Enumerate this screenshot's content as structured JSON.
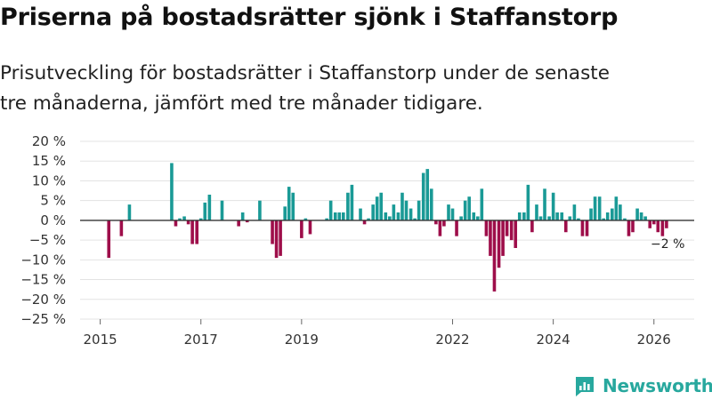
{
  "title": "Priserna på bostadsrätter sjönk i Staffanstorp",
  "subtitle": "Prisutveckling för bostadsrätter i Staffanstorp under de senaste tre månaderna, jämfört med tre månader tidigare.",
  "brand": "Newsworthy",
  "colors": {
    "positive": "#1a9a96",
    "negative": "#9e0e4a",
    "grid": "#e3e3e3",
    "zero": "#333333",
    "brand": "#28a89e"
  },
  "chart_data": {
    "type": "bar",
    "title": "Priserna på bostadsrätter sjönk i Staffanstorp",
    "xlabel": "",
    "ylabel": "",
    "ylim": [
      -25,
      20
    ],
    "yticks": [
      {
        "v": 20,
        "label": "20 %"
      },
      {
        "v": 15,
        "label": "15 %"
      },
      {
        "v": 10,
        "label": "10 %"
      },
      {
        "v": 5,
        "label": "5 %"
      },
      {
        "v": 0,
        "label": "0 %"
      },
      {
        "v": -5,
        "label": "−5 %"
      },
      {
        "v": -10,
        "label": "−10 %"
      },
      {
        "v": -15,
        "label": "−15 %"
      },
      {
        "v": -20,
        "label": "−20 %"
      },
      {
        "v": -25,
        "label": "−25 %"
      }
    ],
    "xlim": [
      2014.6,
      2026.8
    ],
    "xticks": [
      {
        "v": 2015,
        "label": "2015"
      },
      {
        "v": 2017,
        "label": "2017"
      },
      {
        "v": 2019,
        "label": "2019"
      },
      {
        "v": 2022,
        "label": "2022"
      },
      {
        "v": 2024,
        "label": "2024"
      },
      {
        "v": 2026,
        "label": "2026"
      }
    ],
    "annotation": {
      "text": "−2 %",
      "x": 2025.92,
      "y": -2
    },
    "series": [
      {
        "name": "Prisutveckling",
        "points": [
          {
            "x": 2015.17,
            "y": -9.5
          },
          {
            "x": 2015.42,
            "y": -4
          },
          {
            "x": 2015.58,
            "y": 4
          },
          {
            "x": 2016.42,
            "y": 14.5
          },
          {
            "x": 2016.5,
            "y": -1.5
          },
          {
            "x": 2016.58,
            "y": 0.5
          },
          {
            "x": 2016.67,
            "y": 1
          },
          {
            "x": 2016.75,
            "y": -1
          },
          {
            "x": 2016.83,
            "y": -6
          },
          {
            "x": 2016.92,
            "y": -6
          },
          {
            "x": 2017.0,
            "y": 0.5
          },
          {
            "x": 2017.08,
            "y": 4.5
          },
          {
            "x": 2017.17,
            "y": 6.5
          },
          {
            "x": 2017.42,
            "y": 5
          },
          {
            "x": 2017.75,
            "y": -1.5
          },
          {
            "x": 2017.83,
            "y": 2
          },
          {
            "x": 2017.92,
            "y": -0.5
          },
          {
            "x": 2018.17,
            "y": 5
          },
          {
            "x": 2018.42,
            "y": -6
          },
          {
            "x": 2018.5,
            "y": -9.5
          },
          {
            "x": 2018.58,
            "y": -9
          },
          {
            "x": 2018.67,
            "y": 3.5
          },
          {
            "x": 2018.75,
            "y": 8.5
          },
          {
            "x": 2018.83,
            "y": 7
          },
          {
            "x": 2019.0,
            "y": -4.5
          },
          {
            "x": 2019.08,
            "y": 0.5
          },
          {
            "x": 2019.17,
            "y": -3.5
          },
          {
            "x": 2019.5,
            "y": 0.5
          },
          {
            "x": 2019.58,
            "y": 5
          },
          {
            "x": 2019.67,
            "y": 2
          },
          {
            "x": 2019.75,
            "y": 2
          },
          {
            "x": 2019.83,
            "y": 2
          },
          {
            "x": 2019.92,
            "y": 7
          },
          {
            "x": 2020.0,
            "y": 9
          },
          {
            "x": 2020.17,
            "y": 3
          },
          {
            "x": 2020.25,
            "y": -1
          },
          {
            "x": 2020.33,
            "y": 0.5
          },
          {
            "x": 2020.42,
            "y": 4
          },
          {
            "x": 2020.5,
            "y": 6
          },
          {
            "x": 2020.58,
            "y": 7
          },
          {
            "x": 2020.67,
            "y": 2
          },
          {
            "x": 2020.75,
            "y": 1
          },
          {
            "x": 2020.83,
            "y": 4
          },
          {
            "x": 2020.92,
            "y": 2
          },
          {
            "x": 2021.0,
            "y": 7
          },
          {
            "x": 2021.08,
            "y": 5
          },
          {
            "x": 2021.17,
            "y": 3
          },
          {
            "x": 2021.25,
            "y": 0.5
          },
          {
            "x": 2021.33,
            "y": 5
          },
          {
            "x": 2021.42,
            "y": 12
          },
          {
            "x": 2021.5,
            "y": 13
          },
          {
            "x": 2021.58,
            "y": 8
          },
          {
            "x": 2021.67,
            "y": -1
          },
          {
            "x": 2021.75,
            "y": -4
          },
          {
            "x": 2021.83,
            "y": -1.5
          },
          {
            "x": 2021.92,
            "y": 4
          },
          {
            "x": 2022.0,
            "y": 3
          },
          {
            "x": 2022.08,
            "y": -4
          },
          {
            "x": 2022.17,
            "y": 1
          },
          {
            "x": 2022.25,
            "y": 5
          },
          {
            "x": 2022.33,
            "y": 6
          },
          {
            "x": 2022.42,
            "y": 2
          },
          {
            "x": 2022.5,
            "y": 1
          },
          {
            "x": 2022.58,
            "y": 8
          },
          {
            "x": 2022.67,
            "y": -4
          },
          {
            "x": 2022.75,
            "y": -9
          },
          {
            "x": 2022.83,
            "y": -18
          },
          {
            "x": 2022.92,
            "y": -12
          },
          {
            "x": 2023.0,
            "y": -9
          },
          {
            "x": 2023.08,
            "y": -4
          },
          {
            "x": 2023.17,
            "y": -5
          },
          {
            "x": 2023.25,
            "y": -7
          },
          {
            "x": 2023.33,
            "y": 2
          },
          {
            "x": 2023.42,
            "y": 2
          },
          {
            "x": 2023.5,
            "y": 9
          },
          {
            "x": 2023.58,
            "y": -3
          },
          {
            "x": 2023.67,
            "y": 4
          },
          {
            "x": 2023.75,
            "y": 1
          },
          {
            "x": 2023.83,
            "y": 8
          },
          {
            "x": 2023.92,
            "y": 1
          },
          {
            "x": 2024.0,
            "y": 7
          },
          {
            "x": 2024.08,
            "y": 2
          },
          {
            "x": 2024.17,
            "y": 2
          },
          {
            "x": 2024.25,
            "y": -3
          },
          {
            "x": 2024.33,
            "y": 1
          },
          {
            "x": 2024.42,
            "y": 4
          },
          {
            "x": 2024.5,
            "y": 0.5
          },
          {
            "x": 2024.58,
            "y": -4
          },
          {
            "x": 2024.67,
            "y": -4
          },
          {
            "x": 2024.75,
            "y": 3
          },
          {
            "x": 2024.83,
            "y": 6
          },
          {
            "x": 2024.92,
            "y": 6
          },
          {
            "x": 2025.0,
            "y": 0.5
          },
          {
            "x": 2025.08,
            "y": 2
          },
          {
            "x": 2025.17,
            "y": 3
          },
          {
            "x": 2025.25,
            "y": 6
          },
          {
            "x": 2025.33,
            "y": 4
          },
          {
            "x": 2025.42,
            "y": 0.5
          },
          {
            "x": 2025.5,
            "y": -4
          },
          {
            "x": 2025.58,
            "y": -3
          },
          {
            "x": 2025.67,
            "y": 3
          },
          {
            "x": 2025.75,
            "y": 2
          },
          {
            "x": 2025.83,
            "y": 1
          },
          {
            "x": 2025.92,
            "y": -2
          },
          {
            "x": 2026.0,
            "y": -1
          },
          {
            "x": 2026.08,
            "y": -3
          },
          {
            "x": 2026.17,
            "y": -4
          },
          {
            "x": 2026.25,
            "y": -2
          }
        ]
      }
    ]
  }
}
